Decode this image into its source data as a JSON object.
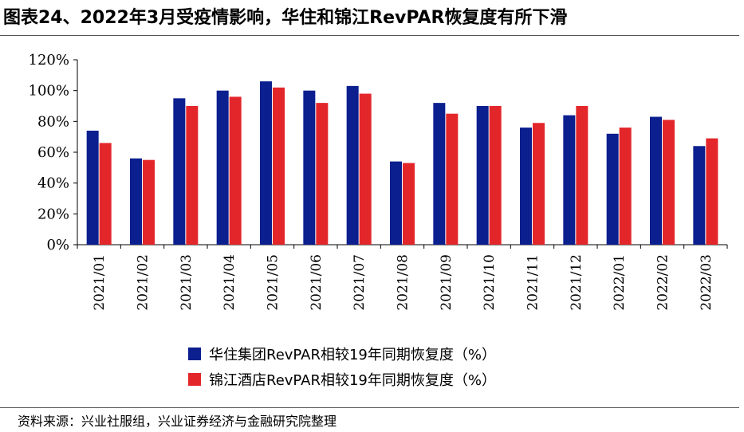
{
  "title": "图表24、2022年3月受疫情影响，华住和锦江RevPAR恢复度有所下滑",
  "source": "资料来源：兴业社服组，兴业证券经济与金融研究院整理",
  "chart_data": {
    "type": "bar",
    "categories": [
      "2021/01",
      "2021/02",
      "2021/03",
      "2021/04",
      "2021/05",
      "2021/06",
      "2021/07",
      "2021/08",
      "2021/09",
      "2021/10",
      "2021/11",
      "2021/12",
      "2022/01",
      "2022/02",
      "2022/03"
    ],
    "series": [
      {
        "name": "华住集团RevPAR相较19年同期恢复度（%）",
        "color": "#0b1f8f",
        "values": [
          74,
          56,
          95,
          100,
          106,
          100,
          103,
          54,
          92,
          90,
          76,
          84,
          72,
          83,
          64
        ]
      },
      {
        "name": "锦江酒店RevPAR相较19年同期恢复度（%）",
        "color": "#e3262a",
        "values": [
          66,
          55,
          90,
          96,
          102,
          92,
          98,
          53,
          85,
          90,
          79,
          90,
          76,
          81,
          69
        ]
      }
    ],
    "ylim": [
      0,
      120
    ],
    "yticks": [
      "0%",
      "20%",
      "40%",
      "60%",
      "80%",
      "100%",
      "120%"
    ],
    "legend_position": "bottom"
  }
}
